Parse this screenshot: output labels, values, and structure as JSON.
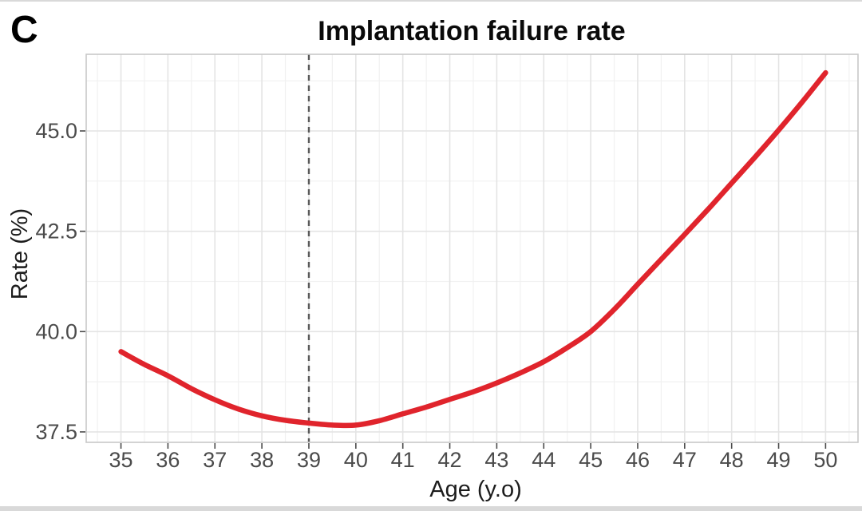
{
  "panel_label": "C",
  "colors": {
    "curve_red": "#e0242c",
    "dashed_line_gray": "#595959",
    "grid_major": "#e4e4e4",
    "grid_minor": "#f1f1f1",
    "panel_border": "#c8c8c8",
    "tick_mark": "#4b4b4b",
    "tick_label_gray": "#4b4b4b",
    "text_black": "#0a0a0a",
    "edge_strip": "#d9d9d9"
  },
  "chart_data": {
    "type": "line",
    "title": "Implantation failure rate",
    "xlabel": "Age (y.o)",
    "ylabel": "Rate (%)",
    "x_ticks": [
      35,
      36,
      37,
      38,
      39,
      40,
      41,
      42,
      43,
      44,
      45,
      46,
      47,
      48,
      49,
      50
    ],
    "x_tick_labels": [
      "35",
      "36",
      "37",
      "38",
      "39",
      "40",
      "41",
      "42",
      "43",
      "44",
      "45",
      "46",
      "47",
      "48",
      "49",
      "50"
    ],
    "y_ticks": [
      37.5,
      40.0,
      42.5,
      45.0
    ],
    "y_tick_labels": [
      "37.5",
      "40.0",
      "42.5",
      "45.0"
    ],
    "x_minor": [
      34.5,
      35.5,
      36.5,
      37.5,
      38.5,
      39.5,
      40.5,
      41.5,
      42.5,
      43.5,
      44.5,
      45.5,
      46.5,
      47.5,
      48.5,
      49.5,
      50.5
    ],
    "y_minor": [
      38.75,
      41.25,
      43.75,
      46.25
    ],
    "xlim": [
      34.26,
      50.69
    ],
    "ylim": [
      37.24,
      46.91
    ],
    "grid": "major+minor",
    "legend": "none",
    "vline": {
      "x": 39,
      "style": "dashed",
      "meaning": "reference age 39"
    },
    "series": [
      {
        "name": "implantation-failure-rate",
        "color": "#e0242c",
        "points": [
          [
            35,
            39.5
          ],
          [
            35.5,
            39.18
          ],
          [
            36,
            38.9
          ],
          [
            36.5,
            38.58
          ],
          [
            37,
            38.3
          ],
          [
            37.5,
            38.07
          ],
          [
            38,
            37.9
          ],
          [
            38.5,
            37.79
          ],
          [
            39,
            37.72
          ],
          [
            39.5,
            37.67
          ],
          [
            40,
            37.67
          ],
          [
            40.5,
            37.78
          ],
          [
            41,
            37.95
          ],
          [
            41.5,
            38.12
          ],
          [
            42,
            38.31
          ],
          [
            42.5,
            38.5
          ],
          [
            43,
            38.72
          ],
          [
            43.5,
            38.97
          ],
          [
            44,
            39.25
          ],
          [
            44.5,
            39.6
          ],
          [
            45,
            40.0
          ],
          [
            45.5,
            40.55
          ],
          [
            46,
            41.18
          ],
          [
            46.5,
            41.8
          ],
          [
            47,
            42.42
          ],
          [
            47.5,
            43.05
          ],
          [
            48,
            43.7
          ],
          [
            48.5,
            44.35
          ],
          [
            49,
            45.02
          ],
          [
            49.5,
            45.72
          ],
          [
            50,
            46.45
          ]
        ]
      }
    ]
  }
}
